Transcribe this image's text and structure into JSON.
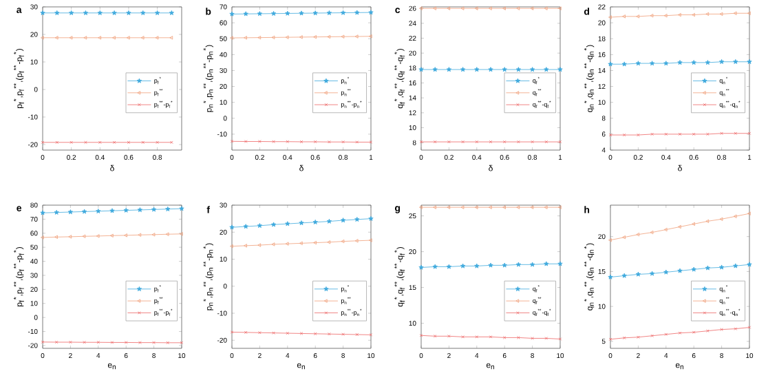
{
  "chart_data": [
    {
      "type": "line",
      "title": "a",
      "xlabel": "δ",
      "ylabel": "p$_{f}$$^{*}$,p$_{f}$$^{**}$,(p$_{f}$$^{**}$-p$_{f}$$^{*}$)",
      "x": [
        0,
        0.1,
        0.2,
        0.3,
        0.4,
        0.5,
        0.6,
        0.7,
        0.8,
        0.9
      ],
      "xlim": [
        0,
        0.97
      ],
      "xticks": [
        0,
        0.2,
        0.4,
        0.6,
        0.8
      ],
      "ylim": [
        -22,
        30
      ],
      "yticks": [
        -20,
        -10,
        0,
        10,
        20,
        30
      ],
      "legend": "right",
      "grid": false,
      "series": [
        {
          "name": "p$_{f}$$^{*}$",
          "color": "#3fa9dd",
          "marker": "star",
          "values": [
            27.8,
            27.8,
            27.8,
            27.8,
            27.8,
            27.8,
            27.8,
            27.8,
            27.8,
            27.8
          ]
        },
        {
          "name": "p$_{f}$$^{**}$",
          "color": "#f0a07a",
          "marker": "triangle",
          "values": [
            18.8,
            18.8,
            18.8,
            18.8,
            18.8,
            18.8,
            18.8,
            18.8,
            18.8,
            18.8
          ]
        },
        {
          "name": "p$_{f}$$^{**}$-p$_{f}$$^{*}$",
          "color": "#ee6666",
          "marker": "cross",
          "values": [
            -19.2,
            -19.2,
            -19.2,
            -19.2,
            -19.2,
            -19.2,
            -19.2,
            -19.2,
            -19.2,
            -19.2
          ]
        }
      ]
    },
    {
      "type": "line",
      "title": "b",
      "xlabel": "δ",
      "ylabel": "p$_{n}$$^{*}$,p$_{n}$$^{**}$,(p$_{n}$$^{**}$-p$_{n}$$^{*}$)",
      "x": [
        0,
        0.1,
        0.2,
        0.3,
        0.4,
        0.5,
        0.6,
        0.7,
        0.8,
        0.9,
        1
      ],
      "xlim": [
        0,
        1
      ],
      "xticks": [
        0,
        0.2,
        0.4,
        0.6,
        0.8,
        1
      ],
      "ylim": [
        -20,
        70
      ],
      "yticks": [
        -10,
        0,
        10,
        20,
        30,
        40,
        50,
        60,
        70
      ],
      "legend": "right",
      "grid": false,
      "series": [
        {
          "name": "p$_{n}$$^{*}$",
          "color": "#3fa9dd",
          "marker": "star",
          "values": [
            65.5,
            65.6,
            65.7,
            65.8,
            65.9,
            66.0,
            66.1,
            66.2,
            66.3,
            66.4,
            66.5
          ]
        },
        {
          "name": "p$_{n}$$^{**}$",
          "color": "#f0a07a",
          "marker": "triangle",
          "values": [
            50.5,
            50.6,
            50.7,
            50.8,
            50.9,
            51.0,
            51.1,
            51.2,
            51.3,
            51.4,
            51.5
          ]
        },
        {
          "name": "p$_{n}$$^{**}$-p$_{n}$$^{*}$",
          "color": "#ee6666",
          "marker": "cross",
          "values": [
            -14.5,
            -14.6,
            -14.6,
            -14.7,
            -14.7,
            -14.8,
            -14.8,
            -14.9,
            -14.9,
            -15.0,
            -15.0
          ]
        }
      ]
    },
    {
      "type": "line",
      "title": "c",
      "xlabel": "δ",
      "ylabel": "q$_{f}$$^{*}$,q$_{f}$$^{**}$,(q$_{f}$$^{**}$-q$_{f}$$^{*}$)",
      "x": [
        0,
        0.1,
        0.2,
        0.3,
        0.4,
        0.5,
        0.6,
        0.7,
        0.8,
        0.9,
        1
      ],
      "xlim": [
        0,
        1
      ],
      "xticks": [
        0,
        0.2,
        0.4,
        0.6,
        0.8,
        1
      ],
      "ylim": [
        7,
        26.2
      ],
      "yticks": [
        8,
        10,
        12,
        14,
        16,
        18,
        20,
        22,
        24,
        26
      ],
      "legend": "right",
      "grid": false,
      "series": [
        {
          "name": "q$_{f}$$^{*}$",
          "color": "#3fa9dd",
          "marker": "star",
          "values": [
            17.8,
            17.8,
            17.8,
            17.8,
            17.8,
            17.8,
            17.8,
            17.8,
            17.8,
            17.8,
            17.8
          ]
        },
        {
          "name": "q$_{f}$$^{**}$",
          "color": "#f0a07a",
          "marker": "triangle",
          "values": [
            26,
            26,
            26,
            26,
            26,
            26,
            26,
            26,
            26,
            26,
            26
          ]
        },
        {
          "name": "q$_{f}$$^{**}$-q$_{f}$$^{*}$",
          "color": "#ee6666",
          "marker": "cross",
          "values": [
            8.1,
            8.1,
            8.1,
            8.1,
            8.1,
            8.1,
            8.1,
            8.1,
            8.1,
            8.1,
            8.1
          ]
        }
      ]
    },
    {
      "type": "line",
      "title": "d",
      "xlabel": "δ",
      "ylabel": "q$_{n}$$^{*}$,q$_{n}$$^{**}$,(q$_{n}$$^{**}$-q$_{n}$$^{*}$)",
      "x": [
        0,
        0.1,
        0.2,
        0.3,
        0.4,
        0.5,
        0.6,
        0.7,
        0.8,
        0.9,
        1
      ],
      "xlim": [
        0,
        1
      ],
      "xticks": [
        0,
        0.2,
        0.4,
        0.6,
        0.8,
        1
      ],
      "ylim": [
        4,
        22
      ],
      "yticks": [
        4,
        6,
        8,
        10,
        12,
        14,
        16,
        18,
        20,
        22
      ],
      "legend": "right",
      "grid": false,
      "series": [
        {
          "name": "q$_{n}$$^{*}$",
          "color": "#3fa9dd",
          "marker": "star",
          "values": [
            14.8,
            14.8,
            14.9,
            14.9,
            14.9,
            15.0,
            15.0,
            15.0,
            15.1,
            15.1,
            15.1
          ]
        },
        {
          "name": "q$_{n}$$^{**}$",
          "color": "#f0a07a",
          "marker": "triangle",
          "values": [
            20.7,
            20.8,
            20.8,
            20.9,
            20.9,
            21.0,
            21.0,
            21.1,
            21.1,
            21.2,
            21.2
          ]
        },
        {
          "name": "q$_{n}$$^{**}$-q$_{n}$$^{*}$",
          "color": "#ee6666",
          "marker": "cross",
          "values": [
            5.9,
            5.9,
            5.9,
            6.0,
            6.0,
            6.0,
            6.0,
            6.0,
            6.1,
            6.1,
            6.1
          ]
        }
      ]
    },
    {
      "type": "line",
      "title": "e",
      "xlabel": "e$_{n}$",
      "ylabel": "p$_{f}$$^{*}$,p$_{f}$$^{**}$,(p$_{f}$$^{**}$-p$_{f}$$^{*}$)",
      "x": [
        0,
        1,
        2,
        3,
        4,
        5,
        6,
        7,
        8,
        9,
        10
      ],
      "xlim": [
        0,
        10
      ],
      "xticks": [
        0,
        2,
        4,
        6,
        8,
        10
      ],
      "ylim": [
        -22,
        80
      ],
      "yticks": [
        -20,
        -10,
        0,
        10,
        20,
        30,
        40,
        50,
        60,
        70,
        80
      ],
      "legend": "bottom right",
      "grid": false,
      "series": [
        {
          "name": "p$_{f}$$^{*}$",
          "color": "#3fa9dd",
          "marker": "star",
          "values": [
            74.5,
            74.8,
            75.1,
            75.4,
            75.7,
            76.0,
            76.3,
            76.6,
            76.9,
            77.2,
            77.5
          ]
        },
        {
          "name": "p$_{f}$$^{**}$",
          "color": "#f0a07a",
          "marker": "triangle",
          "values": [
            57.0,
            57.3,
            57.5,
            57.8,
            58.0,
            58.3,
            58.5,
            58.8,
            59.0,
            59.3,
            59.5
          ]
        },
        {
          "name": "p$_{f}$$^{**}$-p$_{f}$$^{*}$",
          "color": "#ee6666",
          "marker": "cross",
          "values": [
            -17.5,
            -17.6,
            -17.6,
            -17.7,
            -17.7,
            -17.8,
            -17.8,
            -17.9,
            -17.9,
            -18.0,
            -18.0
          ]
        }
      ]
    },
    {
      "type": "line",
      "title": "f",
      "xlabel": "e$_{n}$",
      "ylabel": "p$_{n}$$^{*}$,p$_{n}$$^{**}$,(p$_{n}$$^{**}$-p$_{n}$$^{*}$)",
      "x": [
        0,
        1,
        2,
        3,
        4,
        5,
        6,
        7,
        8,
        9,
        10
      ],
      "xlim": [
        0,
        10
      ],
      "xticks": [
        0,
        2,
        4,
        6,
        8,
        10
      ],
      "ylim": [
        -23,
        30
      ],
      "yticks": [
        -20,
        -10,
        0,
        10,
        20,
        30
      ],
      "legend": "bottom right",
      "grid": false,
      "series": [
        {
          "name": "p$_{n}$$^{*}$",
          "color": "#3fa9dd",
          "marker": "star",
          "values": [
            21.8,
            22.1,
            22.4,
            22.8,
            23.1,
            23.4,
            23.7,
            24.0,
            24.4,
            24.7,
            25.0
          ]
        },
        {
          "name": "p$_{n}$$^{**}$",
          "color": "#f0a07a",
          "marker": "triangle",
          "values": [
            14.8,
            15.0,
            15.2,
            15.5,
            15.7,
            15.9,
            16.1,
            16.3,
            16.6,
            16.8,
            17.0
          ]
        },
        {
          "name": "p$_{n}$$^{**}$-p$_{n}$$^{*}$",
          "color": "#ee6666",
          "marker": "cross",
          "values": [
            -17.0,
            -17.1,
            -17.2,
            -17.3,
            -17.4,
            -17.5,
            -17.6,
            -17.7,
            -17.8,
            -17.9,
            -18.0
          ]
        }
      ]
    },
    {
      "type": "line",
      "title": "g",
      "xlabel": "e$_{n}$",
      "ylabel": "q$_{f}$$^{*}$,q$_{f}$$^{**}$,(q$_{f}$$^{**}$-q$_{f}$$^{*}$)",
      "x": [
        0,
        1,
        2,
        3,
        4,
        5,
        6,
        7,
        8,
        9,
        10
      ],
      "xlim": [
        0,
        10
      ],
      "xticks": [
        0,
        2,
        4,
        6,
        8,
        10
      ],
      "ylim": [
        6.5,
        26.5
      ],
      "yticks": [
        10,
        15,
        20,
        25
      ],
      "legend": "bottom right",
      "grid": false,
      "series": [
        {
          "name": "q$_{f}$$^{*}$",
          "color": "#3fa9dd",
          "marker": "star",
          "values": [
            17.8,
            17.9,
            17.9,
            18.0,
            18.0,
            18.1,
            18.1,
            18.2,
            18.2,
            18.3,
            18.3
          ]
        },
        {
          "name": "q$_{f}$$^{**}$",
          "color": "#f0a07a",
          "marker": "triangle",
          "values": [
            26.2,
            26.2,
            26.2,
            26.2,
            26.2,
            26.2,
            26.2,
            26.2,
            26.2,
            26.2,
            26.2
          ]
        },
        {
          "name": "q$_{f}$$^{**}$-q$_{f}$$^{*}$",
          "color": "#ee6666",
          "marker": "cross",
          "values": [
            8.3,
            8.2,
            8.2,
            8.1,
            8.1,
            8.1,
            8.0,
            8.0,
            7.9,
            7.9,
            7.8
          ]
        }
      ]
    },
    {
      "type": "line",
      "title": "h",
      "xlabel": "e$_{n}$",
      "ylabel": "q$_{n}$$^{*}$,q$_{n}$$^{**}$,(q$_{n}$$^{**}$-q$_{n}$$^{*}$)",
      "x": [
        0,
        1,
        2,
        3,
        4,
        5,
        6,
        7,
        8,
        9,
        10
      ],
      "xlim": [
        0,
        10
      ],
      "xticks": [
        0,
        2,
        4,
        6,
        8,
        10
      ],
      "ylim": [
        4,
        24.5
      ],
      "yticks": [
        5,
        10,
        15,
        20
      ],
      "legend": "bottom right",
      "grid": false,
      "series": [
        {
          "name": "q$_{n}$$^{*}$",
          "color": "#3fa9dd",
          "marker": "star",
          "values": [
            14.2,
            14.4,
            14.6,
            14.7,
            14.9,
            15.1,
            15.3,
            15.5,
            15.6,
            15.8,
            16.0
          ]
        },
        {
          "name": "q$_{n}$$^{**}$",
          "color": "#f0a07a",
          "marker": "triangle",
          "values": [
            19.5,
            19.9,
            20.3,
            20.6,
            21.0,
            21.4,
            21.8,
            22.2,
            22.5,
            22.9,
            23.3
          ]
        },
        {
          "name": "q$_{n}$$^{**}$-q$_{n}$$^{*}$",
          "color": "#ee6666",
          "marker": "cross",
          "values": [
            5.3,
            5.5,
            5.6,
            5.8,
            6.0,
            6.2,
            6.3,
            6.5,
            6.7,
            6.8,
            7.0
          ]
        }
      ]
    }
  ]
}
